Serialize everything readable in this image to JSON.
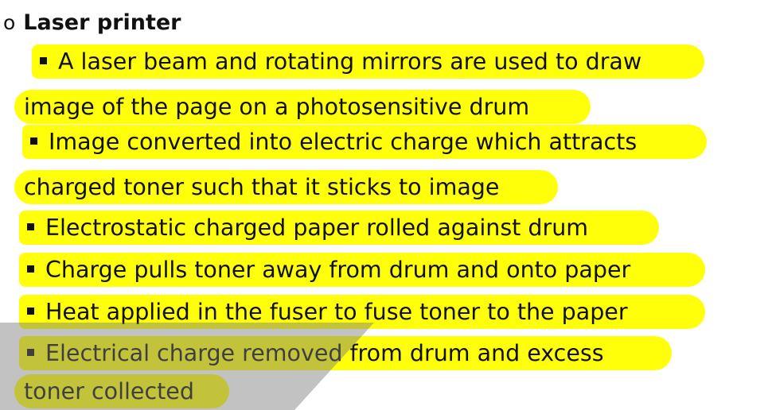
{
  "heading": {
    "bullet": "o",
    "title": "Laser printer"
  },
  "highlight_color": "#ffff0a",
  "bullet_icon": "square-bullet",
  "lines": [
    "A laser beam and rotating mirrors are used to draw",
    "image of the page on a photosensitive drum",
    "Image converted into electric charge which attracts",
    "charged toner such that it sticks to image",
    "Electrostatic charged paper rolled against drum",
    "Charge pulls toner away from drum and onto paper",
    "Heat applied in the fuser to fuse toner to the paper",
    "Electrical charge removed from drum and excess",
    "toner collected"
  ]
}
